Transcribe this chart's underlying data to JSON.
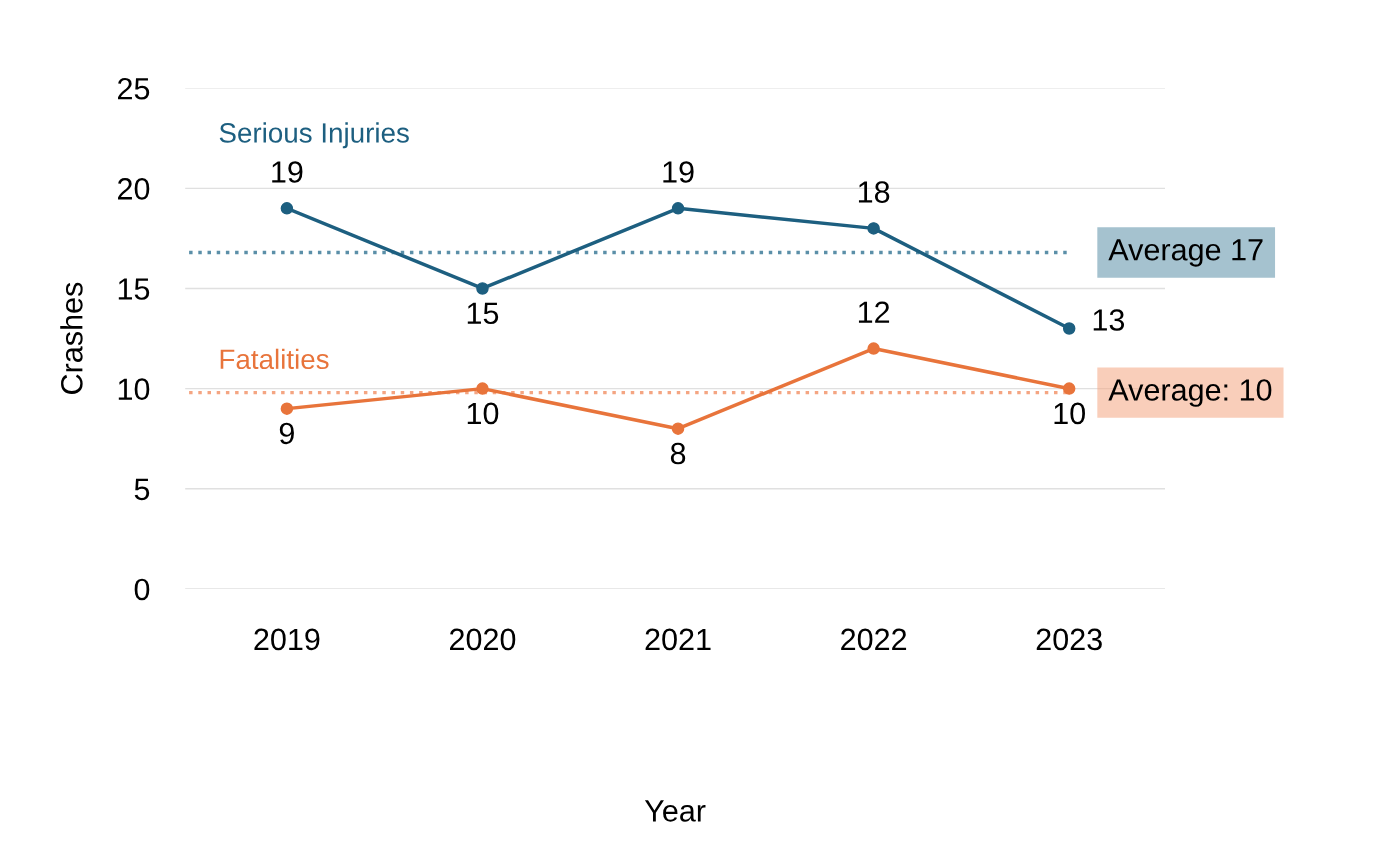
{
  "chart_data": {
    "type": "line",
    "xlabel": "Year",
    "ylabel": "Crashes",
    "categories": [
      "2019",
      "2020",
      "2021",
      "2022",
      "2023"
    ],
    "series": [
      {
        "name": "Serious Injuries",
        "color": "#1d5f80",
        "values": [
          19,
          15,
          19,
          18,
          13
        ]
      },
      {
        "name": "Fatalities",
        "color": "#e8743b",
        "values": [
          9,
          10,
          8,
          12,
          10
        ]
      }
    ],
    "ylim": [
      0,
      25
    ],
    "yticks": [
      0,
      5,
      10,
      15,
      20,
      25
    ],
    "grid": "y",
    "marker": "circle",
    "line_style": "solid",
    "data_labels": true,
    "legend": false,
    "ref_lines": [
      {
        "axis": "y",
        "value": 16.8,
        "label": "Average 17",
        "color": "#5b8fa8",
        "line_style": "dotted"
      },
      {
        "axis": "y",
        "value": 9.8,
        "label": "Average: 10",
        "color": "#f4a582",
        "line_style": "dotted"
      }
    ]
  }
}
